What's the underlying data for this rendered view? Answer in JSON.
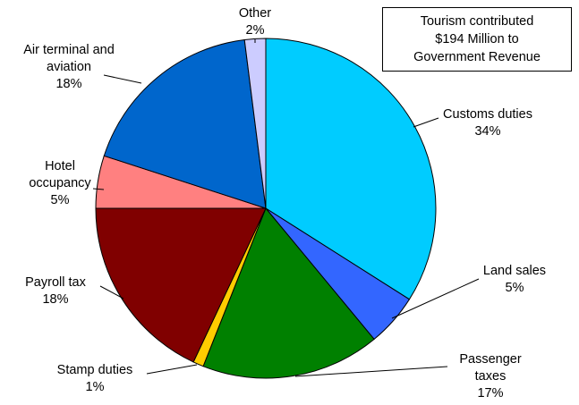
{
  "chart_data": {
    "type": "pie",
    "annotation": [
      "Tourism contributed",
      "$194 Million to",
      "Government Revenue"
    ],
    "slices": [
      {
        "label": [
          "Customs duties",
          "34%"
        ],
        "value": 34,
        "color": "#00CCFF"
      },
      {
        "label": [
          "Land sales",
          "5%"
        ],
        "value": 5,
        "color": "#3366FF"
      },
      {
        "label": [
          "Passenger",
          "taxes",
          "17%"
        ],
        "value": 17,
        "color": "#008000"
      },
      {
        "label": [
          "Stamp duties",
          "1%"
        ],
        "value": 1,
        "color": "#FFCC00"
      },
      {
        "label": [
          "Payroll tax",
          "18%"
        ],
        "value": 18,
        "color": "#800000"
      },
      {
        "label": [
          "Hotel",
          "occupancy",
          "5%"
        ],
        "value": 5,
        "color": "#FF8080"
      },
      {
        "label": [
          "Air terminal and",
          "aviation",
          "18%"
        ],
        "value": 18,
        "color": "#0066CC"
      },
      {
        "label": [
          "Other",
          "2%"
        ],
        "value": 2,
        "color": "#CCCCFF"
      }
    ]
  }
}
